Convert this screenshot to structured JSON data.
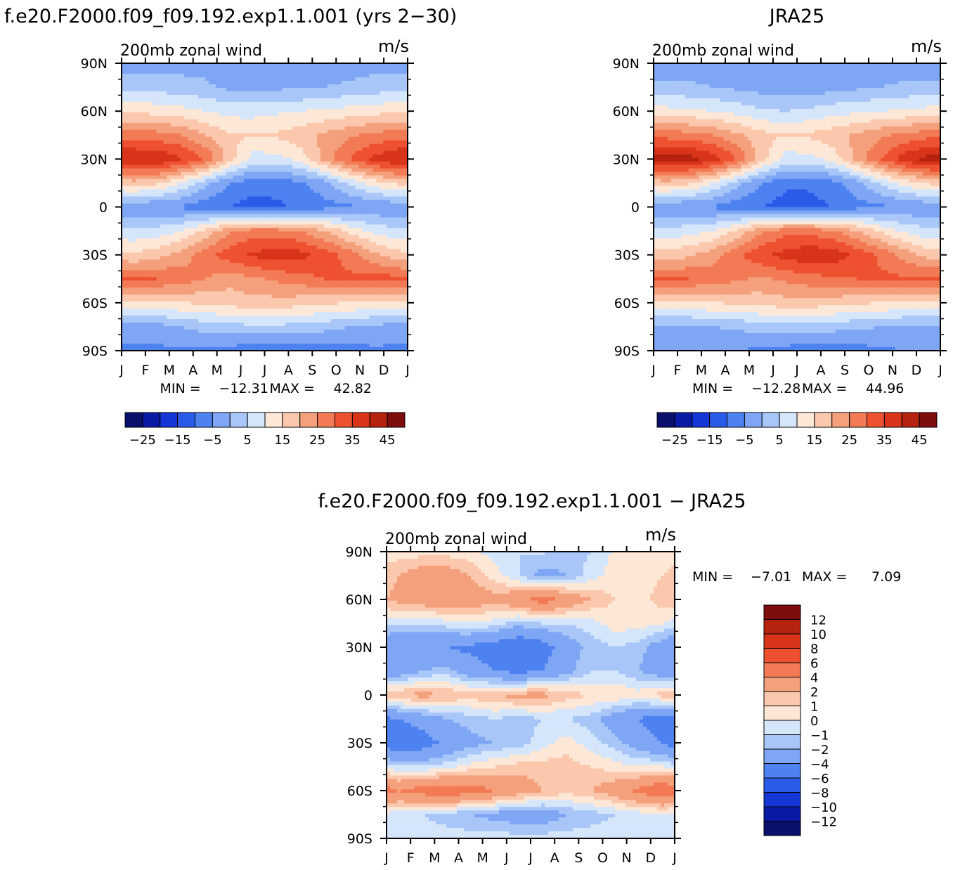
{
  "chart_data": [
    {
      "type": "heatmap",
      "id": "model",
      "title": "f.e20.F2000.f09_f09.192.exp1.1.001 (yrs 2−30)",
      "left_label": "200mb zonal wind",
      "units": "m/s",
      "x_tick_labels": [
        "J",
        "F",
        "M",
        "A",
        "M",
        "J",
        "J",
        "A",
        "S",
        "O",
        "N",
        "D",
        "J"
      ],
      "y_tick_labels": [
        "90N",
        "60N",
        "30N",
        "0",
        "30S",
        "60S",
        "90S"
      ],
      "y_tick_values": [
        90,
        60,
        30,
        0,
        -30,
        -60,
        -90
      ],
      "xlim": [
        0,
        12
      ],
      "ylim": [
        -90,
        90
      ],
      "min_label": "MIN =",
      "min_value": "−12.31",
      "max_label": "MAX =",
      "max_value": "42.82",
      "colorbar": {
        "orientation": "horizontal",
        "levels": [
          -30,
          -25,
          -20,
          -15,
          -10,
          -5,
          0,
          5,
          10,
          15,
          20,
          25,
          30,
          35,
          40,
          45
        ],
        "labels": [
          "−25",
          "−15",
          "−5",
          "5",
          "15",
          "25",
          "35",
          "45"
        ],
        "colors": [
          "#0a0f6b",
          "#0b1aa5",
          "#1436d4",
          "#2a5ae8",
          "#4d82f0",
          "#7ea6f4",
          "#a8c6f8",
          "#d5e6fb",
          "#fde7d7",
          "#fbc8ad",
          "#f5a07c",
          "#f27b55",
          "#ee5130",
          "#d8341a",
          "#b5230f",
          "#7e0d0d"
        ]
      },
      "contour_levels": [
        -30,
        -25,
        -20,
        -15,
        -10,
        -5,
        0,
        5,
        10,
        15,
        20,
        25,
        30,
        35,
        40,
        45
      ],
      "field": {
        "months": [
          0.5,
          1.5,
          2.5,
          3.5,
          4.5,
          5.5,
          6.5,
          7.5,
          8.5,
          9.5,
          10.5,
          11.5
        ],
        "lats": [
          90,
          75,
          60,
          45,
          30,
          15,
          0,
          -15,
          -30,
          -45,
          -60,
          -75,
          -90
        ],
        "values": [
          [
            -2,
            -2,
            -2,
            -2,
            -3,
            -3,
            -3,
            -3,
            -3,
            -3,
            -2,
            -2
          ],
          [
            3,
            3,
            2,
            1,
            -1,
            -1,
            -1,
            -1,
            0,
            1,
            2,
            3
          ],
          [
            14,
            13,
            12,
            10,
            8,
            8,
            9,
            10,
            11,
            12,
            13,
            14
          ],
          [
            28,
            27,
            25,
            20,
            16,
            15,
            16,
            18,
            21,
            24,
            26,
            28
          ],
          [
            40,
            40,
            36,
            30,
            18,
            8,
            8,
            12,
            22,
            30,
            36,
            40
          ],
          [
            18,
            16,
            10,
            2,
            -5,
            -8,
            -8,
            -6,
            -2,
            6,
            12,
            16
          ],
          [
            -4,
            -5,
            -6,
            -8,
            -10,
            -12,
            -11,
            -9,
            -7,
            -6,
            -5,
            -4
          ],
          [
            6,
            7,
            10,
            16,
            24,
            27,
            27,
            25,
            20,
            14,
            9,
            6
          ],
          [
            16,
            18,
            22,
            28,
            33,
            36,
            38,
            37,
            33,
            28,
            22,
            17
          ],
          [
            30,
            30,
            28,
            25,
            22,
            24,
            26,
            28,
            30,
            31,
            32,
            32
          ],
          [
            14,
            14,
            15,
            16,
            17,
            18,
            18,
            17,
            16,
            15,
            14,
            14
          ],
          [
            -2,
            -2,
            0,
            2,
            3,
            4,
            4,
            3,
            2,
            0,
            -1,
            -2
          ],
          [
            -6,
            -6,
            -6,
            -6,
            -7,
            -8,
            -10,
            -9,
            -8,
            -7,
            -6,
            -6
          ]
        ]
      }
    },
    {
      "type": "heatmap",
      "id": "obs",
      "title": "JRA25",
      "left_label": "200mb zonal wind",
      "units": "m/s",
      "x_tick_labels": [
        "J",
        "F",
        "M",
        "A",
        "M",
        "J",
        "J",
        "A",
        "S",
        "O",
        "N",
        "D",
        "J"
      ],
      "y_tick_labels": [
        "90N",
        "60N",
        "30N",
        "0",
        "30S",
        "60S",
        "90S"
      ],
      "y_tick_values": [
        90,
        60,
        30,
        0,
        -30,
        -60,
        -90
      ],
      "xlim": [
        0,
        12
      ],
      "ylim": [
        -90,
        90
      ],
      "min_label": "MIN =",
      "min_value": "−12.28",
      "max_label": "MAX =",
      "max_value": "44.96",
      "colorbar": {
        "orientation": "horizontal",
        "levels": [
          -30,
          -25,
          -20,
          -15,
          -10,
          -5,
          0,
          5,
          10,
          15,
          20,
          25,
          30,
          35,
          40,
          45
        ],
        "labels": [
          "−25",
          "−15",
          "−5",
          "5",
          "15",
          "25",
          "35",
          "45"
        ],
        "colors": [
          "#0a0f6b",
          "#0b1aa5",
          "#1436d4",
          "#2a5ae8",
          "#4d82f0",
          "#7ea6f4",
          "#a8c6f8",
          "#d5e6fb",
          "#fde7d7",
          "#fbc8ad",
          "#f5a07c",
          "#f27b55",
          "#ee5130",
          "#d8341a",
          "#b5230f",
          "#7e0d0d"
        ]
      },
      "contour_levels": [
        -30,
        -25,
        -20,
        -15,
        -10,
        -5,
        0,
        5,
        10,
        15,
        20,
        25,
        30,
        35,
        40,
        45
      ],
      "field": {
        "months": [
          0.5,
          1.5,
          2.5,
          3.5,
          4.5,
          5.5,
          6.5,
          7.5,
          8.5,
          9.5,
          10.5,
          11.5
        ],
        "lats": [
          90,
          75,
          60,
          45,
          30,
          15,
          0,
          -15,
          -30,
          -45,
          -60,
          -75,
          -90
        ],
        "values": [
          [
            -3,
            -3,
            -3,
            -3,
            -3,
            -3,
            -3,
            -3,
            -3,
            -3,
            -3,
            -3
          ],
          [
            1,
            1,
            0,
            -1,
            -2,
            -3,
            -3,
            -2,
            -1,
            0,
            1,
            1
          ],
          [
            12,
            11,
            10,
            8,
            6,
            5,
            6,
            8,
            9,
            10,
            11,
            12
          ],
          [
            28,
            27,
            25,
            21,
            17,
            15,
            16,
            18,
            21,
            24,
            26,
            28
          ],
          [
            42,
            42,
            38,
            30,
            18,
            8,
            8,
            12,
            22,
            30,
            38,
            42
          ],
          [
            18,
            16,
            10,
            2,
            -5,
            -9,
            -9,
            -7,
            -2,
            6,
            12,
            16
          ],
          [
            -4,
            -5,
            -6,
            -8,
            -10,
            -12,
            -12,
            -10,
            -7,
            -6,
            -5,
            -4
          ],
          [
            6,
            8,
            10,
            16,
            24,
            28,
            28,
            26,
            20,
            14,
            9,
            6
          ],
          [
            17,
            19,
            23,
            29,
            34,
            37,
            39,
            38,
            34,
            29,
            23,
            18
          ],
          [
            30,
            30,
            28,
            26,
            24,
            26,
            28,
            29,
            30,
            31,
            31,
            32
          ],
          [
            14,
            14,
            15,
            16,
            17,
            18,
            18,
            17,
            16,
            15,
            14,
            14
          ],
          [
            -1,
            -1,
            0,
            1,
            2,
            3,
            3,
            2,
            1,
            0,
            -1,
            -1
          ],
          [
            -5,
            -5,
            -5,
            -5,
            -6,
            -7,
            -8,
            -8,
            -7,
            -6,
            -5,
            -5
          ]
        ]
      }
    },
    {
      "type": "heatmap",
      "id": "diff",
      "title": "f.e20.F2000.f09_f09.192.exp1.1.001 − JRA25",
      "left_label": "200mb zonal wind",
      "units": "m/s",
      "x_tick_labels": [
        "J",
        "F",
        "M",
        "A",
        "M",
        "J",
        "J",
        "A",
        "S",
        "O",
        "N",
        "D",
        "J"
      ],
      "y_tick_labels": [
        "90N",
        "60N",
        "30N",
        "0",
        "30S",
        "60S",
        "90S"
      ],
      "y_tick_values": [
        90,
        60,
        30,
        0,
        -30,
        -60,
        -90
      ],
      "xlim": [
        0,
        12
      ],
      "ylim": [
        -90,
        90
      ],
      "min_label": "MIN =",
      "min_value": "−7.01",
      "max_label": "MAX =",
      "max_value": "7.09",
      "colorbar": {
        "orientation": "vertical",
        "levels": [
          -14,
          -12,
          -10,
          -8,
          -6,
          -4,
          -2,
          -1,
          0,
          1,
          2,
          4,
          6,
          8,
          10,
          12,
          14
        ],
        "labels": [
          "−12",
          "−10",
          "−8",
          "−6",
          "−4",
          "−2",
          "−1",
          "0",
          "1",
          "2",
          "4",
          "6",
          "8",
          "10",
          "12"
        ],
        "colors": [
          "#0a0f6b",
          "#0b1aa5",
          "#1436d4",
          "#2a5ae8",
          "#4d82f0",
          "#7ea6f4",
          "#a8c6f8",
          "#d5e6fb",
          "#fde7d7",
          "#fbc8ad",
          "#f5a07c",
          "#f27b55",
          "#ee5130",
          "#d8341a",
          "#b5230f",
          "#7e0d0d"
        ]
      },
      "contour_levels": [
        -14,
        -12,
        -10,
        -8,
        -6,
        -4,
        -2,
        -1,
        0,
        1,
        2,
        4,
        6,
        8,
        10,
        12,
        14
      ],
      "field": {
        "months": [
          0.5,
          1.5,
          2.5,
          3.5,
          4.5,
          5.5,
          6.5,
          7.5,
          8.5,
          9.5,
          10.5,
          11.5
        ],
        "lats": [
          90,
          75,
          60,
          45,
          30,
          15,
          0,
          -15,
          -30,
          -45,
          -60,
          -75,
          -90
        ],
        "values": [
          [
            0.5,
            0.5,
            0.5,
            0.3,
            -0.5,
            -1,
            -0.8,
            -1.5,
            -1,
            0.2,
            0.3,
            0.3
          ],
          [
            2,
            3,
            3,
            2,
            0.5,
            -1,
            -2.5,
            -2,
            -0.5,
            0.5,
            0.5,
            1
          ],
          [
            2.5,
            3,
            3.5,
            3,
            2.5,
            3.5,
            5,
            3.5,
            2,
            1,
            0.5,
            1.5
          ],
          [
            -1,
            -1,
            -0.5,
            0,
            -0.5,
            -1.5,
            -1,
            -1,
            -0.5,
            0.5,
            0.5,
            0
          ],
          [
            -4,
            -3.5,
            -4,
            -4.5,
            -5,
            -6,
            -5,
            -3,
            -1.5,
            -1,
            -1.5,
            -3
          ],
          [
            -3,
            -2,
            -1.5,
            -3,
            -4,
            -4.5,
            -4,
            -2.5,
            -1,
            -1,
            -2,
            -3
          ],
          [
            2,
            2.5,
            2,
            1.5,
            2,
            2.5,
            2.5,
            1.5,
            1,
            1,
            0.5,
            1.5
          ],
          [
            -4,
            -3,
            -2,
            -1.5,
            -1,
            -1.5,
            -1,
            -1,
            -1.5,
            -3,
            -4,
            -5
          ],
          [
            -6,
            -5,
            -3.5,
            -2.5,
            -2,
            -1.5,
            -0.5,
            0.5,
            -0.5,
            -1.5,
            -3,
            -4
          ],
          [
            -1,
            -1,
            -0.5,
            0.5,
            1,
            1.5,
            1.5,
            1.5,
            1,
            0.5,
            0,
            0
          ],
          [
            4,
            5,
            5.5,
            5,
            4,
            3,
            2,
            1.5,
            2,
            3,
            4.5,
            6
          ],
          [
            -0.5,
            -1,
            -1.5,
            -2,
            -2.5,
            -3,
            -3,
            -2,
            -1.5,
            -1,
            -0.5,
            -0.5
          ],
          [
            -0.5,
            -0.5,
            -0.5,
            -0.5,
            -0.5,
            -0.5,
            -0.5,
            -0.5,
            -0.5,
            -0.5,
            -0.5,
            -0.5
          ]
        ]
      }
    }
  ]
}
